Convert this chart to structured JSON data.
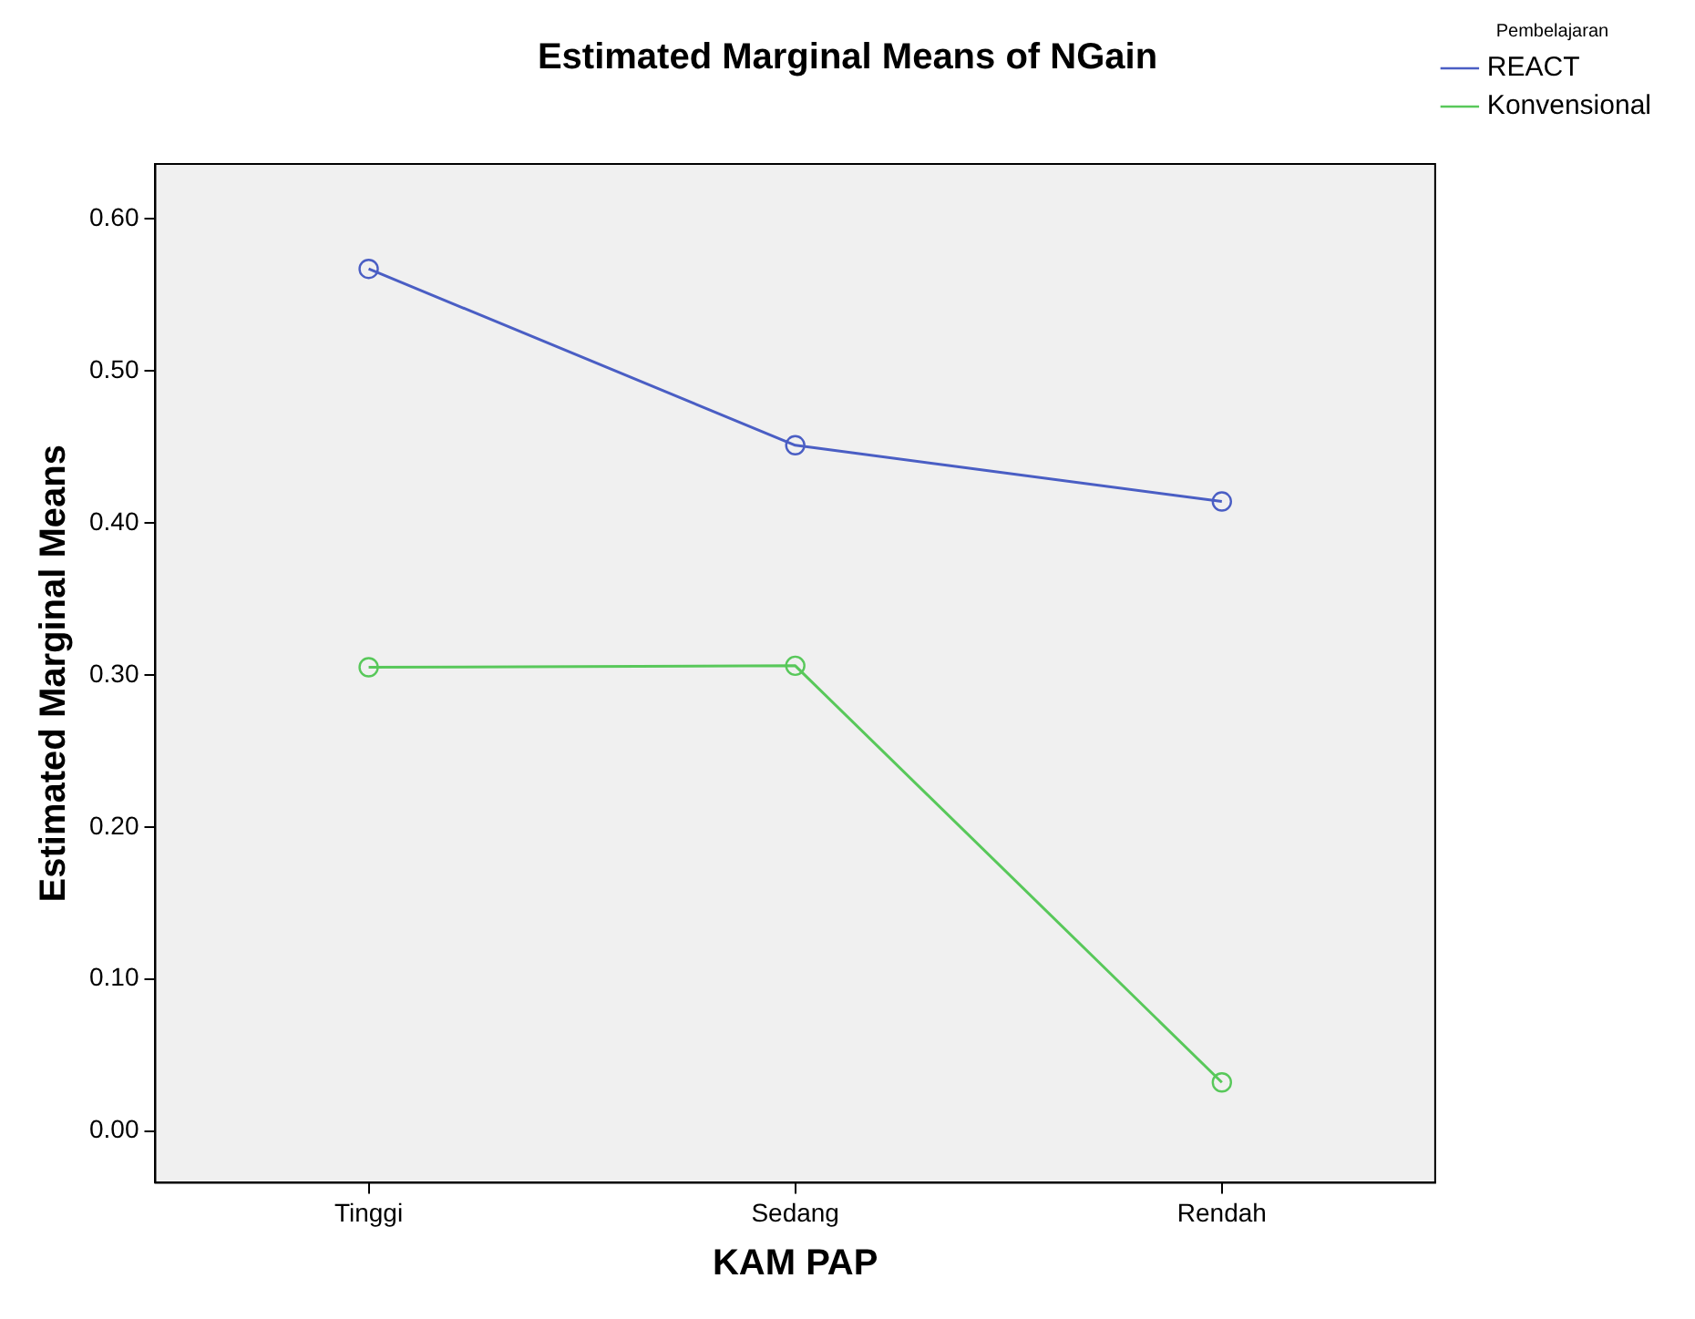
{
  "chart_data": {
    "type": "line",
    "title": "Estimated Marginal Means of NGain",
    "xlabel": "KAM PAP",
    "ylabel": "Estimated Marginal Means",
    "legend_title": "Pembelajaran",
    "legend": "top right",
    "marker": "circle",
    "grid": false,
    "categories": [
      "Tinggi",
      "Sedang",
      "Rendah"
    ],
    "series": [
      {
        "name": "REACT",
        "color": "#4a5ec4",
        "values": [
          0.567,
          0.451,
          0.414
        ]
      },
      {
        "name": "Konvensional",
        "color": "#58c85a",
        "values": [
          0.305,
          0.306,
          0.032
        ]
      }
    ],
    "ylim": [
      -0.034,
      0.636
    ],
    "yticks": [
      {
        "value": 0,
        "label": "0.00"
      },
      {
        "value": 0.1,
        "label": "0.10"
      },
      {
        "value": 0.2,
        "label": "0.20"
      },
      {
        "value": 0.3,
        "label": "0.30"
      },
      {
        "value": 0.4,
        "label": "0.40"
      },
      {
        "value": 0.5,
        "label": "0.50"
      },
      {
        "value": 0.6,
        "label": "0.60"
      }
    ]
  }
}
